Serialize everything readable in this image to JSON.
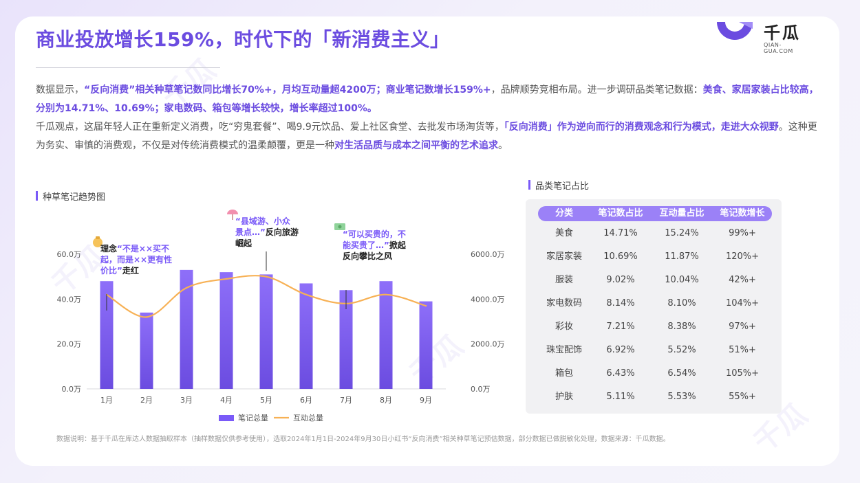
{
  "page": {
    "title": "商业投放增长159%，时代下的「新消费主义」",
    "logo": {
      "name": "千瓜",
      "domain": "QIAN-GUA.COM"
    },
    "paragraph1": {
      "p1": "数据显示，",
      "h1": "“反向消费”相关种草笔记数同比增长70%+，月均互动量超4200万；商业笔记数增长159%+",
      "p2": "，品牌顺势竞相布局。进一步调研品类笔记数据：",
      "h2": "美食、家居家装占比较高，分别为14.71%、10.69%；家电数码、箱包等增长较快，增长率超过100%。"
    },
    "paragraph2": {
      "p1": "千瓜观点，这届年轻人正在重新定义消费，吃“穷鬼套餐”、喝9.9元饮品、爱上社区食堂、去批发市场淘货等，",
      "h1": "「反向消费」作为逆向而行的消费观念和行为模式，走进大众视野",
      "p2": "。这种更为务实、审慎的消费观，不仅是对传统消费模式的温柔颠覆，更是一种",
      "h2": "对生活品质与成本之间平衡的艺术追求",
      "p3": "。"
    },
    "footnote": "数据说明：基于千瓜在库达人数据抽取样本（抽样数据仅供参考使用），选取2024年1月1日-2024年9月30日小红书“反向消费”相关种草笔记预估数据，部分数据已做脱敏化处理，数据来源：千瓜数据。",
    "watermark": "千瓜",
    "watermark_domain": "QIAN-GUA.COM"
  },
  "chart_section": {
    "label": "种草笔记趋势图"
  },
  "table_section": {
    "label": "品类笔记占比"
  },
  "table": {
    "headers": [
      "分类",
      "笔记数占比",
      "互动量占比",
      "笔记数增长"
    ],
    "rows": [
      [
        "美食",
        "14.71%",
        "15.24%",
        "99%+"
      ],
      [
        "家居家装",
        "10.69%",
        "11.87%",
        "120%+"
      ],
      [
        "服装",
        "9.02%",
        "10.04%",
        "42%+"
      ],
      [
        "家电数码",
        "8.14%",
        "8.10%",
        "104%+"
      ],
      [
        "彩妆",
        "7.21%",
        "8.38%",
        "97%+"
      ],
      [
        "珠宝配饰",
        "6.92%",
        "5.52%",
        "51%+"
      ],
      [
        "箱包",
        "6.43%",
        "6.54%",
        "105%+"
      ],
      [
        "护肤",
        "5.11%",
        "5.53%",
        "55%+"
      ]
    ]
  },
  "chart_data": {
    "type": "bar",
    "categories": [
      "1月",
      "2月",
      "3月",
      "4月",
      "5月",
      "6月",
      "7月",
      "8月",
      "9月"
    ],
    "series": [
      {
        "name": "笔记总量",
        "type": "bar",
        "axis": "left",
        "color": "#7a5af8",
        "values": [
          48,
          34,
          53,
          52,
          51,
          47,
          44,
          48,
          39
        ]
      },
      {
        "name": "互动总量",
        "type": "line",
        "axis": "right",
        "color": "#f7b155",
        "values": [
          4200,
          3200,
          4500,
          4900,
          5000,
          4200,
          3800,
          4200,
          3700
        ]
      }
    ],
    "y_left": {
      "ticks": [
        "0.0万",
        "20.0万",
        "40.0万",
        "60.0万"
      ],
      "ylim": [
        0,
        60
      ]
    },
    "y_right": {
      "ticks": [
        "0.0万",
        "2000.0万",
        "4000.0万",
        "6000.0万"
      ],
      "ylim": [
        0,
        6000
      ]
    },
    "annotations": [
      {
        "month": "1月",
        "icon": "money-bag",
        "lines": [
          [
            {
              "t": "理念",
              "c": "dark"
            },
            {
              "t": "“不是××买不",
              "c": "accent"
            }
          ],
          [
            {
              "t": "起，而是××更有性",
              "c": "accent"
            }
          ],
          [
            {
              "t": "价比”",
              "c": "accent"
            },
            {
              "t": "走红",
              "c": "dark"
            }
          ]
        ]
      },
      {
        "month": "5月",
        "icon": "umbrella",
        "lines": [
          [
            {
              "t": "“县域游、小众",
              "c": "accent"
            }
          ],
          [
            {
              "t": "景点…”",
              "c": "accent"
            },
            {
              "t": "反向旅游",
              "c": "dark"
            }
          ],
          [
            {
              "t": "崛起",
              "c": "dark"
            }
          ]
        ]
      },
      {
        "month": "7月",
        "icon": "cash",
        "lines": [
          [
            {
              "t": "“可以买贵的，不",
              "c": "accent"
            }
          ],
          [
            {
              "t": "能买贵了…”",
              "c": "accent"
            },
            {
              "t": "掀起",
              "c": "dark"
            }
          ],
          [
            {
              "t": "反向攀比之风",
              "c": "dark"
            }
          ]
        ]
      }
    ],
    "legend_position": "bottom",
    "grid": false
  }
}
